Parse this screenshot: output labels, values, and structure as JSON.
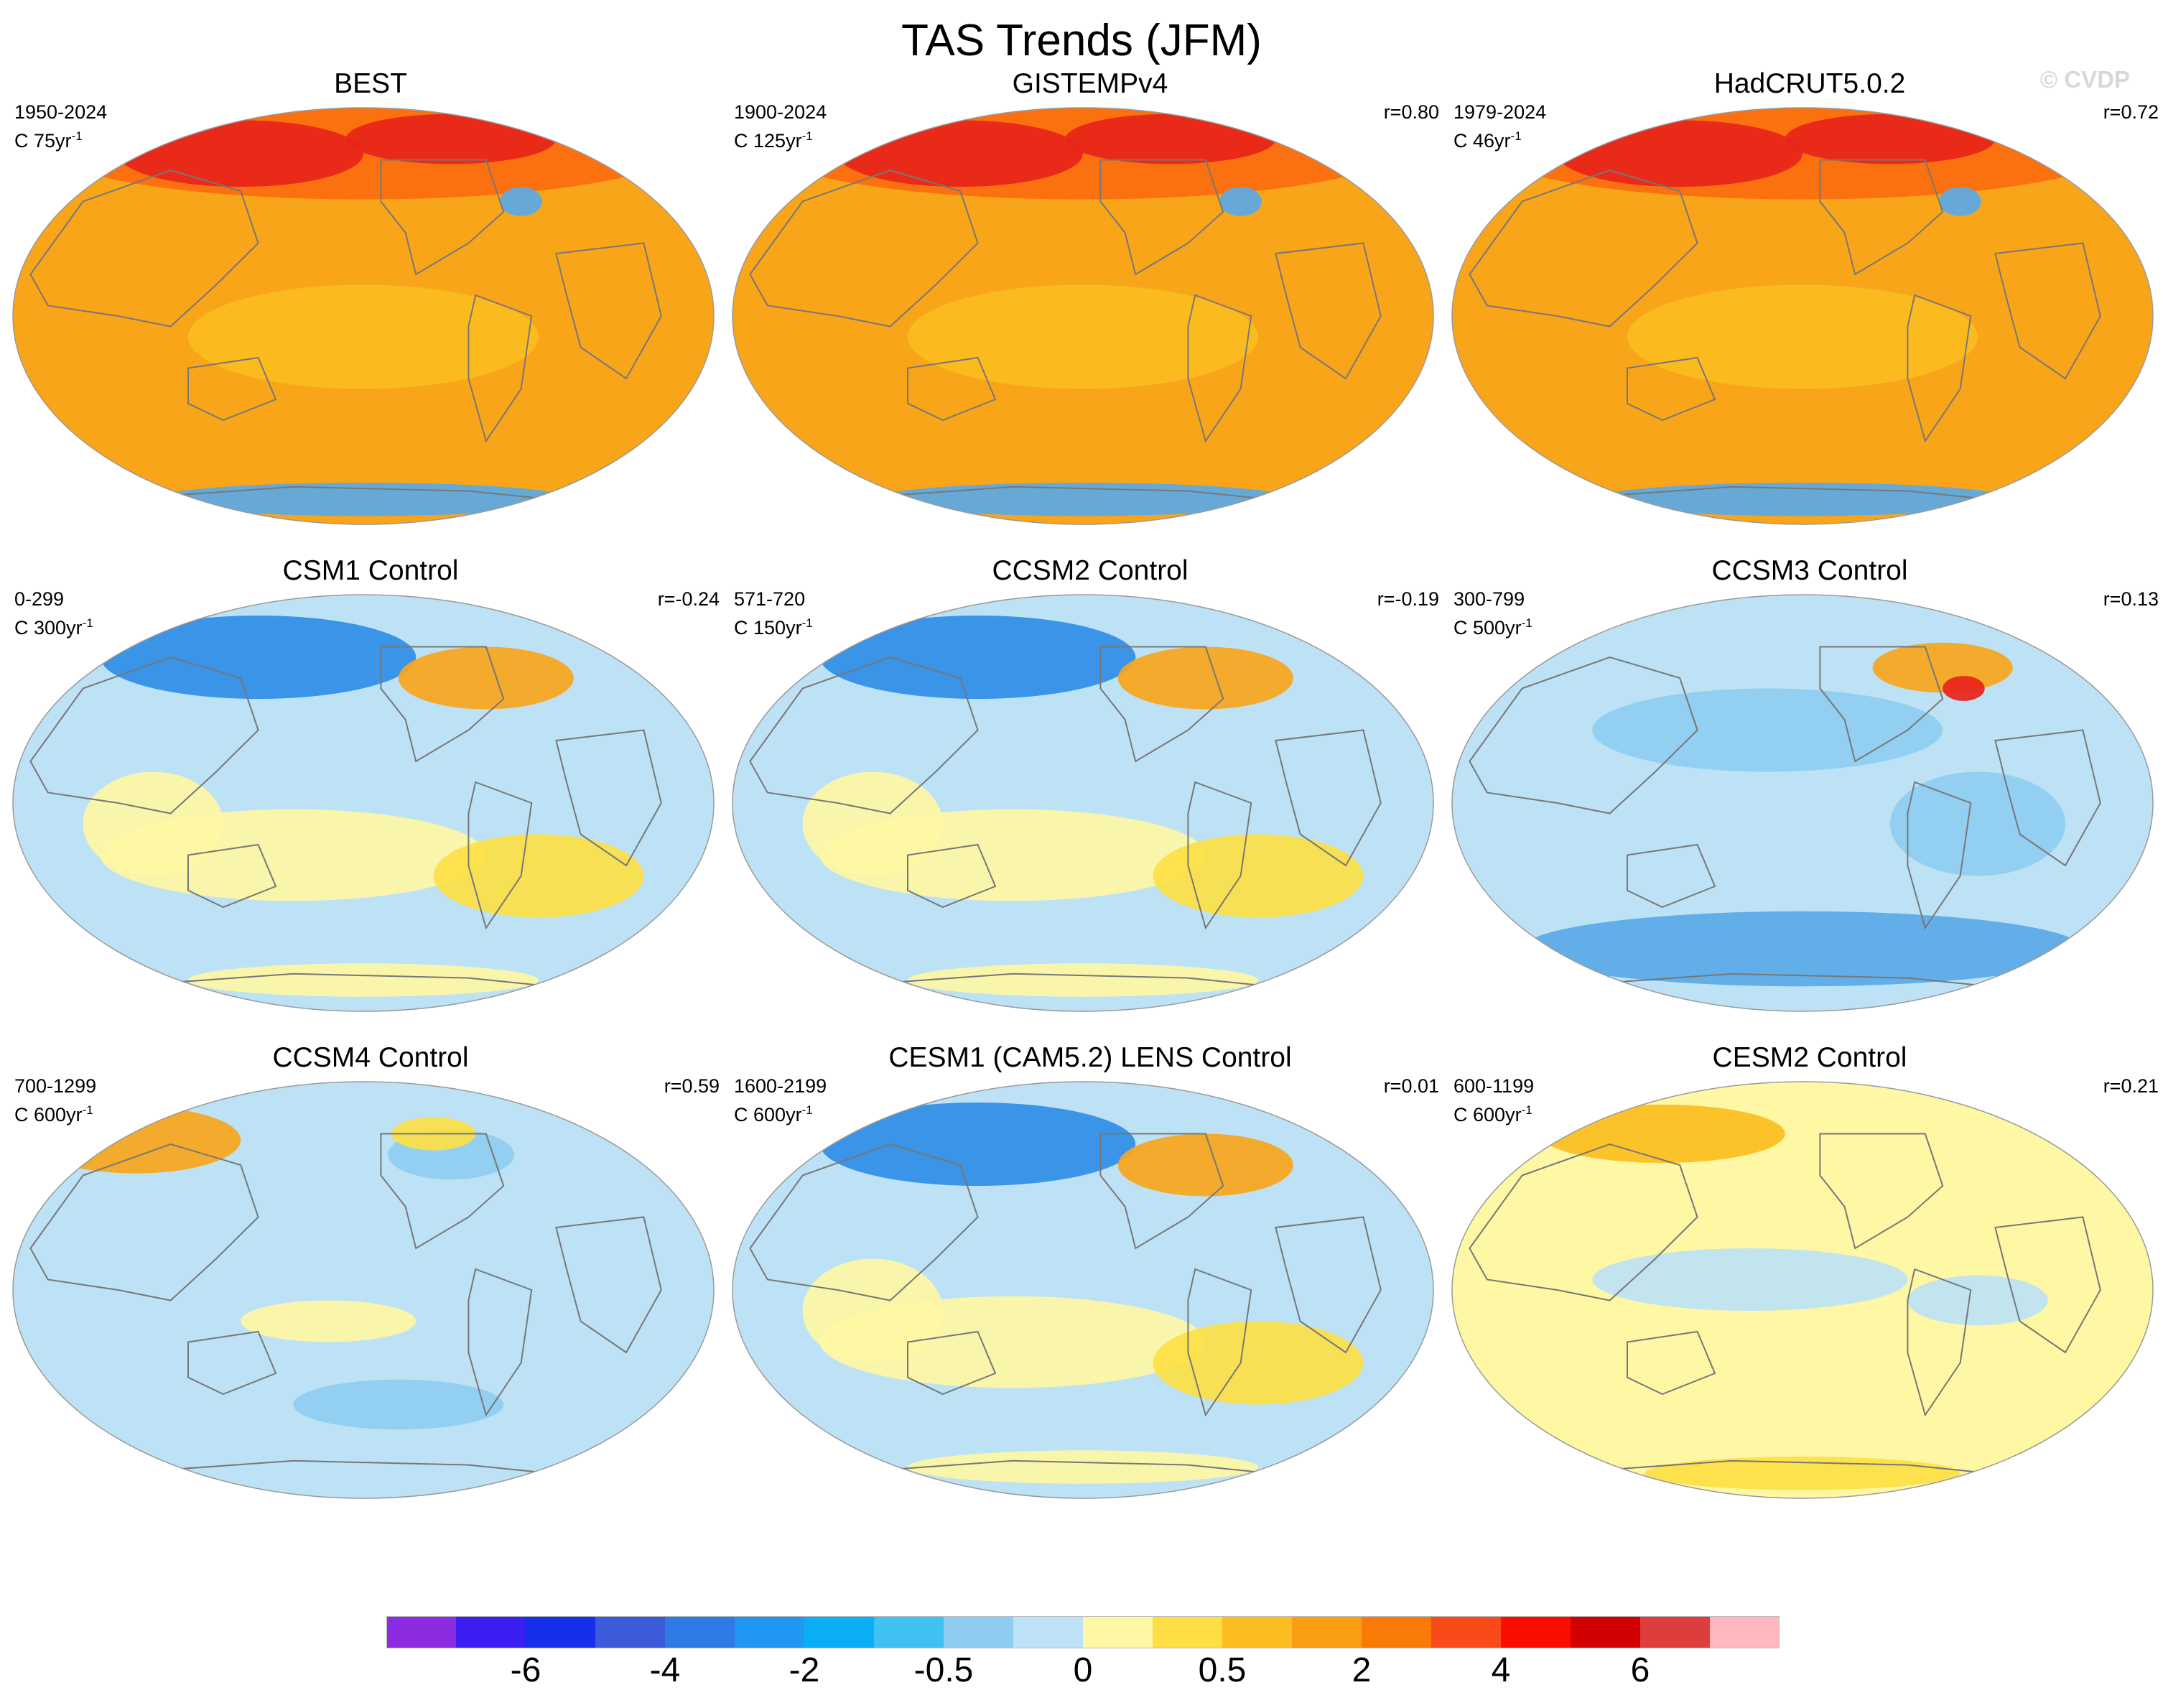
{
  "title": "TAS Trends (JFM)",
  "watermark": "© CVDP",
  "panels": [
    {
      "name": "BEST",
      "period": "1950-2024",
      "units_prefix": "C",
      "units_value": "75yr",
      "units_exp": "-1",
      "corr": "",
      "pattern": "warm-strong"
    },
    {
      "name": "GISTEMPv4",
      "period": "1900-2024",
      "units_prefix": "C",
      "units_value": "125yr",
      "units_exp": "-1",
      "corr": "r=0.80",
      "pattern": "warm-strong"
    },
    {
      "name": "HadCRUT5.0.2",
      "period": "1979-2024",
      "units_prefix": "C",
      "units_value": "46yr",
      "units_exp": "-1",
      "corr": "r=0.72",
      "pattern": "warm-strong"
    },
    {
      "name": "CSM1 Control",
      "period": "0-299",
      "units_prefix": "C",
      "units_value": "300yr",
      "units_exp": "-1",
      "corr": "r=-0.24",
      "pattern": "mixed"
    },
    {
      "name": "CCSM2 Control",
      "period": "571-720",
      "units_prefix": "C",
      "units_value": "150yr",
      "units_exp": "-1",
      "corr": "r=-0.19",
      "pattern": "mixed"
    },
    {
      "name": "CCSM3 Control",
      "period": "300-799",
      "units_prefix": "C",
      "units_value": "500yr",
      "units_exp": "-1",
      "corr": "r=0.13",
      "pattern": "cool"
    },
    {
      "name": "CCSM4 Control",
      "period": "700-1299",
      "units_prefix": "C",
      "units_value": "600yr",
      "units_exp": "-1",
      "corr": "r=0.59",
      "pattern": "cool-north-warm"
    },
    {
      "name": "CESM1 (CAM5.2) LENS Control",
      "period": "1600-2199",
      "units_prefix": "C",
      "units_value": "600yr",
      "units_exp": "-1",
      "corr": "r=0.01",
      "pattern": "mixed"
    },
    {
      "name": "CESM2 Control",
      "period": "600-1199",
      "units_prefix": "C",
      "units_value": "600yr",
      "units_exp": "-1",
      "corr": "r=0.21",
      "pattern": "neutral-warm"
    }
  ],
  "colorbar": {
    "colors": [
      "#8b2be2",
      "#3a1ef2",
      "#1530e8",
      "#3b5bdb",
      "#2f7be6",
      "#2196f3",
      "#0aaef5",
      "#3fc1f2",
      "#8ecdf0",
      "#bde2f5",
      "#fef7a4",
      "#fddf45",
      "#fbbd1f",
      "#f99d12",
      "#f97a07",
      "#f94a1a",
      "#fb0e00",
      "#d20000",
      "#dd3d3d",
      "#ffb8c0"
    ],
    "labels": [
      "-6",
      "-4",
      "-2",
      "-0.5",
      "0",
      "0.5",
      "2",
      "4",
      "6"
    ]
  },
  "palette": {
    "coast": "#777777",
    "warm_bg": "#f9a51a",
    "warm_strong": "#fb6b0e",
    "warm_peak": "#e8241a",
    "neutral_bg": "#bde2f5",
    "yellow": "#fef7a4",
    "blue_mid": "#5aa9e6",
    "blue_strong": "#2f8de6"
  }
}
